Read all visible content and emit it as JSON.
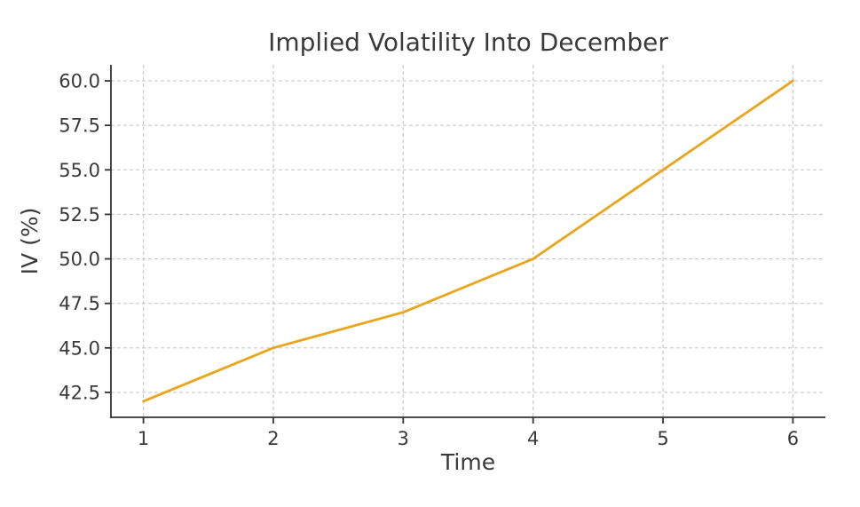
{
  "chart_data": {
    "type": "line",
    "title": "Implied Volatility Into December",
    "xlabel": "Time",
    "ylabel": "IV (%)",
    "x": [
      1,
      2,
      3,
      4,
      5,
      6
    ],
    "series": [
      {
        "name": "IV",
        "values": [
          42,
          45,
          47,
          50,
          55,
          60
        ]
      }
    ],
    "xlim": [
      0.75,
      6.25
    ],
    "ylim": [
      41.1,
      60.9
    ],
    "xticks": [
      1,
      2,
      3,
      4,
      5,
      6
    ],
    "xtick_labels": [
      "1",
      "2",
      "3",
      "4",
      "5",
      "6"
    ],
    "yticks": [
      42.5,
      45,
      47.5,
      50,
      52.5,
      55,
      57.5,
      60
    ],
    "ytick_labels": [
      "42.5",
      "45.0",
      "47.5",
      "50.0",
      "52.5",
      "55.0",
      "57.5",
      "60.0"
    ],
    "grid": true,
    "grid_style": "dashed",
    "legend": false
  },
  "colors": {
    "line": "#E9A51B",
    "grid": "#c9c9c9",
    "spine": "#333333",
    "text": "#3a3a3a",
    "background": "#ffffff"
  }
}
